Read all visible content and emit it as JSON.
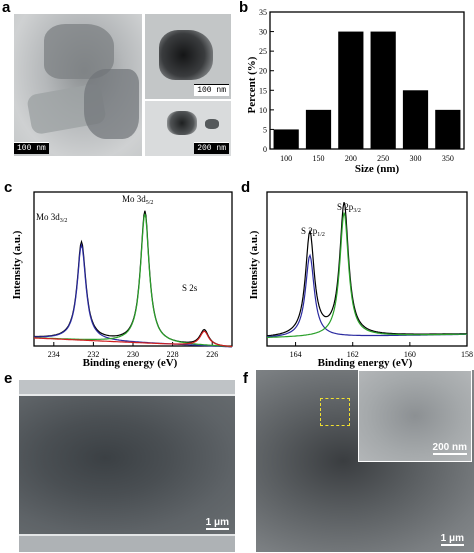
{
  "panels": {
    "a": {
      "label": "a",
      "scale_left": "100 nm",
      "scale_tr": "100 nm",
      "scale_br": "200 nm"
    },
    "b": {
      "label": "b"
    },
    "c": {
      "label": "c",
      "peak1": "Mo 3d",
      "peak1_sub": "3/2",
      "peak2": "Mo 3d",
      "peak2_sub": "5/2",
      "peak3": "S 2s"
    },
    "d": {
      "label": "d",
      "peak1": "S 2p",
      "peak1_sub": "1/2",
      "peak2": "S 2p",
      "peak2_sub": "3/2"
    },
    "e": {
      "label": "e",
      "scale": "1 μm"
    },
    "f": {
      "label": "f",
      "scale": "1 μm",
      "inset_scale": "200 nm"
    }
  },
  "chart_data": [
    {
      "type": "bar",
      "panel": "b",
      "categories": [
        "100",
        "150",
        "200",
        "250",
        "300",
        "350"
      ],
      "values": [
        5,
        10,
        30,
        30,
        15,
        10
      ],
      "xlabel": "Size (nm)",
      "ylabel": "Percent (%)",
      "ylim": [
        0,
        35
      ],
      "yticks": [
        "0",
        "5",
        "10",
        "15",
        "20",
        "25",
        "30",
        "35"
      ],
      "bar_color": "#000000"
    },
    {
      "type": "line",
      "panel": "c",
      "xlabel": "Binding energy (eV)",
      "ylabel": "Intensity (a.u.)",
      "xlim": [
        235,
        225
      ],
      "xticks": [
        "234",
        "232",
        "230",
        "228",
        "226"
      ],
      "series": [
        {
          "color": "#000000",
          "peaks": [
            [
              232.6,
              0.74
            ],
            [
              229.4,
              1.0
            ],
            [
              226.4,
              0.12
            ]
          ]
        },
        {
          "color": "#2a2aa0",
          "peaks": [
            [
              232.6,
              0.72
            ]
          ]
        },
        {
          "color": "#2aa02a",
          "peaks": [
            [
              229.4,
              0.98
            ]
          ]
        },
        {
          "color": "#d02020",
          "peaks": [
            [
              226.4,
              0.11
            ]
          ]
        }
      ]
    },
    {
      "type": "line",
      "panel": "d",
      "xlabel": "Binding energy (eV)",
      "ylabel": "Intensity (a.u.)",
      "xlim": [
        165,
        158
      ],
      "xticks": [
        "164",
        "162",
        "160",
        "158"
      ],
      "series": [
        {
          "color": "#000000",
          "peaks": [
            [
              163.5,
              0.78
            ],
            [
              162.3,
              1.0
            ]
          ]
        },
        {
          "color": "#2a2aa0",
          "peaks": [
            [
              163.5,
              0.62
            ]
          ]
        },
        {
          "color": "#2aa02a",
          "peaks": [
            [
              162.3,
              0.94
            ]
          ]
        }
      ]
    }
  ]
}
